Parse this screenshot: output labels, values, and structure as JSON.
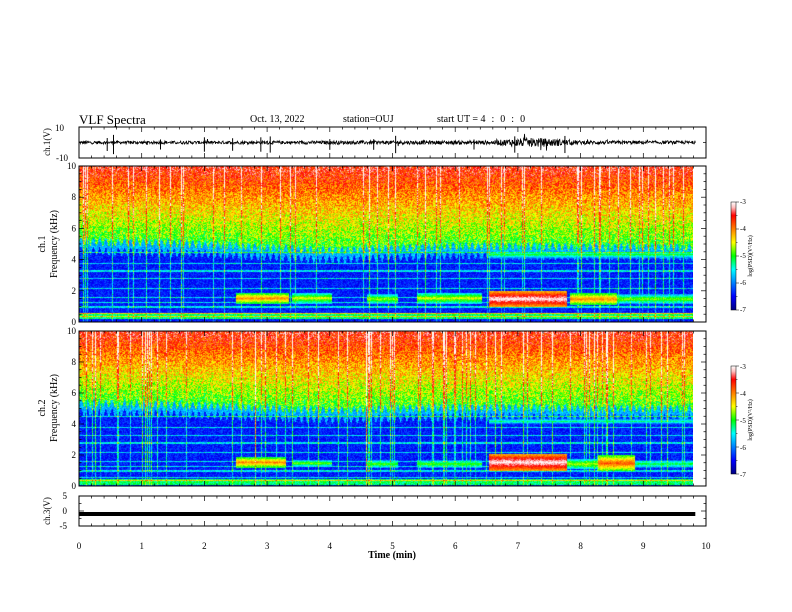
{
  "header": {
    "title": "VLF Spectra",
    "date": "Oct. 13, 2022",
    "station": "station=OUJ",
    "start_label": "start  UT =",
    "start_h": "4",
    "start_m": "0",
    "start_s": "0"
  },
  "chart_data": [
    {
      "type": "line",
      "id": "ch1-waveform",
      "ylabel": "ch.1(V)",
      "ylim": [
        -10,
        10
      ],
      "y_tick_labels": [
        "10",
        "-10"
      ],
      "x_range_min": [
        0,
        10
      ],
      "trace_end_min": 9.83,
      "envelope": [
        {
          "t": 0.0,
          "amp": 1.0
        },
        {
          "t": 2.5,
          "amp": 1.0
        },
        {
          "t": 6.6,
          "amp": 1.3
        },
        {
          "t": 6.9,
          "amp": 2.5
        },
        {
          "t": 7.3,
          "amp": 3.0
        },
        {
          "t": 7.7,
          "amp": 2.2
        },
        {
          "t": 8.0,
          "amp": 1.2
        },
        {
          "t": 9.83,
          "amp": 1.0
        }
      ],
      "spikes_min": [
        0.45,
        0.55,
        1.3,
        2.0,
        2.45,
        2.9,
        3.05,
        4.0,
        4.7,
        5.05,
        6.3,
        6.95,
        7.75
      ],
      "color": "#000000"
    },
    {
      "type": "heatmap",
      "id": "ch1-spectrogram",
      "ylabel": "ch.1",
      "ylabel2": "Frequency  (kHz)",
      "ylim": [
        0,
        10
      ],
      "y_ticks": [
        0,
        2,
        4,
        6,
        8,
        10
      ],
      "x_range_min": [
        0,
        10
      ],
      "data_end_min": 9.83,
      "colorbar": {
        "label": "log(PSD)(V²/Hz)",
        "range": [
          -7,
          -3
        ],
        "ticks": [
          "-3",
          "-4",
          "-5",
          "-6",
          "-7"
        ],
        "colormap": "jet"
      },
      "noise_floor_boundary_khz": [
        {
          "t": 0,
          "f": 5.2
        },
        {
          "t": 2.0,
          "f": 5.0
        },
        {
          "t": 4.0,
          "f": 4.6
        },
        {
          "t": 6.0,
          "f": 4.9
        },
        {
          "t": 9.83,
          "f": 4.8
        }
      ],
      "emission_bands": [
        {
          "t0": 2.5,
          "t1": 3.35,
          "f0": 1.2,
          "f1": 1.9,
          "level": -4.0
        },
        {
          "t0": 3.4,
          "t1": 4.05,
          "f0": 1.2,
          "f1": 1.9,
          "level": -4.5
        },
        {
          "t0": 4.6,
          "t1": 5.1,
          "f0": 1.2,
          "f1": 1.8,
          "level": -4.6
        },
        {
          "t0": 5.4,
          "t1": 6.45,
          "f0": 1.2,
          "f1": 1.9,
          "level": -4.5
        },
        {
          "t0": 6.55,
          "t1": 7.8,
          "f0": 1.0,
          "f1": 2.0,
          "level": -3.0
        },
        {
          "t0": 7.85,
          "t1": 8.6,
          "f0": 1.1,
          "f1": 1.9,
          "level": -4.0
        },
        {
          "t0": 8.6,
          "t1": 9.83,
          "f0": 1.2,
          "f1": 1.8,
          "level": -4.7
        },
        {
          "t0": 6.55,
          "t1": 9.83,
          "f0": 4.1,
          "f1": 4.6,
          "level": -5.0
        }
      ],
      "low_band_khz": [
        0.2,
        0.6
      ],
      "horizontal_lines_khz": [
        0.4,
        0.6,
        1.0,
        1.3,
        1.6,
        2.2,
        2.8,
        3.3,
        3.8,
        4.5
      ]
    },
    {
      "type": "heatmap",
      "id": "ch2-spectrogram",
      "ylabel": "ch.2",
      "ylabel2": "Frequency  (kHz)",
      "ylim": [
        0,
        10
      ],
      "y_ticks": [
        0,
        2,
        4,
        6,
        8,
        10
      ],
      "x_range_min": [
        0,
        10
      ],
      "data_end_min": 9.83,
      "colorbar": {
        "label": "log(PSD)(V²/Hz)",
        "range": [
          -7,
          -3
        ],
        "ticks": [
          "-3",
          "-4",
          "-5",
          "-6",
          "-7"
        ],
        "colormap": "jet"
      },
      "noise_floor_boundary_khz": [
        {
          "t": 0,
          "f": 5.4
        },
        {
          "t": 2.0,
          "f": 5.2
        },
        {
          "t": 4.0,
          "f": 4.9
        },
        {
          "t": 6.0,
          "f": 5.1
        },
        {
          "t": 9.83,
          "f": 5.0
        }
      ],
      "emission_bands": [
        {
          "t0": 2.5,
          "t1": 3.3,
          "f0": 1.2,
          "f1": 1.9,
          "level": -4.0
        },
        {
          "t0": 3.4,
          "t1": 4.05,
          "f0": 1.3,
          "f1": 1.7,
          "level": -4.7
        },
        {
          "t0": 4.6,
          "t1": 5.1,
          "f0": 1.2,
          "f1": 1.7,
          "level": -4.8
        },
        {
          "t0": 5.4,
          "t1": 6.45,
          "f0": 1.2,
          "f1": 1.7,
          "level": -4.8
        },
        {
          "t0": 6.55,
          "t1": 7.8,
          "f0": 1.0,
          "f1": 2.1,
          "level": -3.0
        },
        {
          "t0": 7.8,
          "t1": 8.3,
          "f0": 1.1,
          "f1": 1.8,
          "level": -4.6
        },
        {
          "t0": 8.3,
          "t1": 8.9,
          "f0": 1.0,
          "f1": 2.0,
          "level": -3.8
        },
        {
          "t0": 8.9,
          "t1": 9.83,
          "f0": 1.2,
          "f1": 1.7,
          "level": -5.0
        },
        {
          "t0": 6.55,
          "t1": 9.83,
          "f0": 4.0,
          "f1": 4.4,
          "level": -5.2
        }
      ],
      "low_band_khz": [
        0.1,
        0.5
      ],
      "horizontal_lines_khz": [
        0.4,
        0.6,
        1.0,
        1.3,
        1.6,
        2.2,
        2.8,
        3.3,
        3.8,
        4.5
      ]
    },
    {
      "type": "line",
      "id": "ch3-waveform",
      "ylabel": "ch.3(V)",
      "ylim": [
        -5,
        5
      ],
      "y_tick_labels": [
        "5",
        "0",
        "-5"
      ],
      "x_range_min": [
        0,
        10
      ],
      "trace_end_min": 9.83,
      "constant_value": -1.0,
      "color": "#000000"
    }
  ],
  "x_axis": {
    "label": "Time  (min)",
    "ticks": [
      0,
      1,
      2,
      3,
      4,
      5,
      6,
      7,
      8,
      9,
      10
    ],
    "tick_labels": [
      "0",
      "1",
      "2",
      "3",
      "4",
      "5",
      "6",
      "7",
      "8",
      "9",
      "10"
    ]
  }
}
